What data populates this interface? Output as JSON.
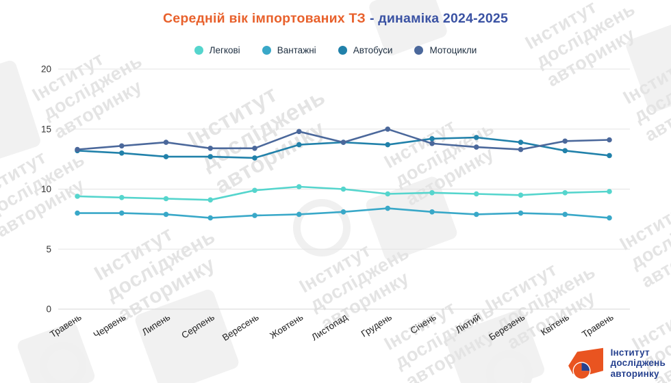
{
  "title": {
    "orange": "Середній вік імпортованих ТЗ",
    "blue": "- динаміка 2024-2025"
  },
  "colors": {
    "title_orange": "#e8612c",
    "title_blue": "#3a52a3",
    "gridline": "#e3e3e3",
    "axis_line": "#d6d6d6",
    "axis_text": "#333333",
    "legend_text": "#1c2d3f",
    "watermark": "#e4e4e4",
    "logo_orange": "#e95420",
    "logo_blue": "#26418f"
  },
  "chart_data": {
    "type": "line",
    "title": "Середній вік імпортованих ТЗ - динаміка 2024-2025",
    "categories": [
      "Травень",
      "Червень",
      "Липень",
      "Серпень",
      "Вересень",
      "Жовтень",
      "Листопад",
      "Грудень",
      "Січень",
      "Лютий",
      "Березень",
      "Квітень",
      "Травень"
    ],
    "series": [
      {
        "name": "Легкові",
        "color": "#55d5cd",
        "values": [
          9.4,
          9.3,
          9.2,
          9.1,
          9.9,
          10.2,
          10.0,
          9.6,
          9.7,
          9.6,
          9.5,
          9.7,
          9.8
        ]
      },
      {
        "name": "Вантажні",
        "color": "#39a8c8",
        "values": [
          8.0,
          8.0,
          7.9,
          7.6,
          7.8,
          7.9,
          8.1,
          8.4,
          8.1,
          7.9,
          8.0,
          7.9,
          7.6
        ]
      },
      {
        "name": "Автобуси",
        "color": "#2181aa",
        "values": [
          13.2,
          13.0,
          12.7,
          12.7,
          12.6,
          13.7,
          13.9,
          13.7,
          14.2,
          14.3,
          13.9,
          13.2,
          12.8
        ]
      },
      {
        "name": "Мотоцикли",
        "color": "#4b689b",
        "values": [
          13.3,
          13.6,
          13.9,
          13.4,
          13.4,
          14.8,
          13.9,
          15.0,
          13.8,
          13.5,
          13.3,
          14.0,
          14.1
        ]
      }
    ],
    "xlabel": "",
    "ylabel": "",
    "ylim": [
      0,
      20
    ],
    "yticks": [
      0,
      5,
      10,
      15,
      20
    ],
    "grid": true,
    "legend_position": "top"
  },
  "watermark": {
    "lines": [
      "Інститут",
      "досліджень",
      "авторинку"
    ]
  },
  "logo": {
    "lines": [
      "Інститут",
      "досліджень",
      "авторинку"
    ]
  }
}
